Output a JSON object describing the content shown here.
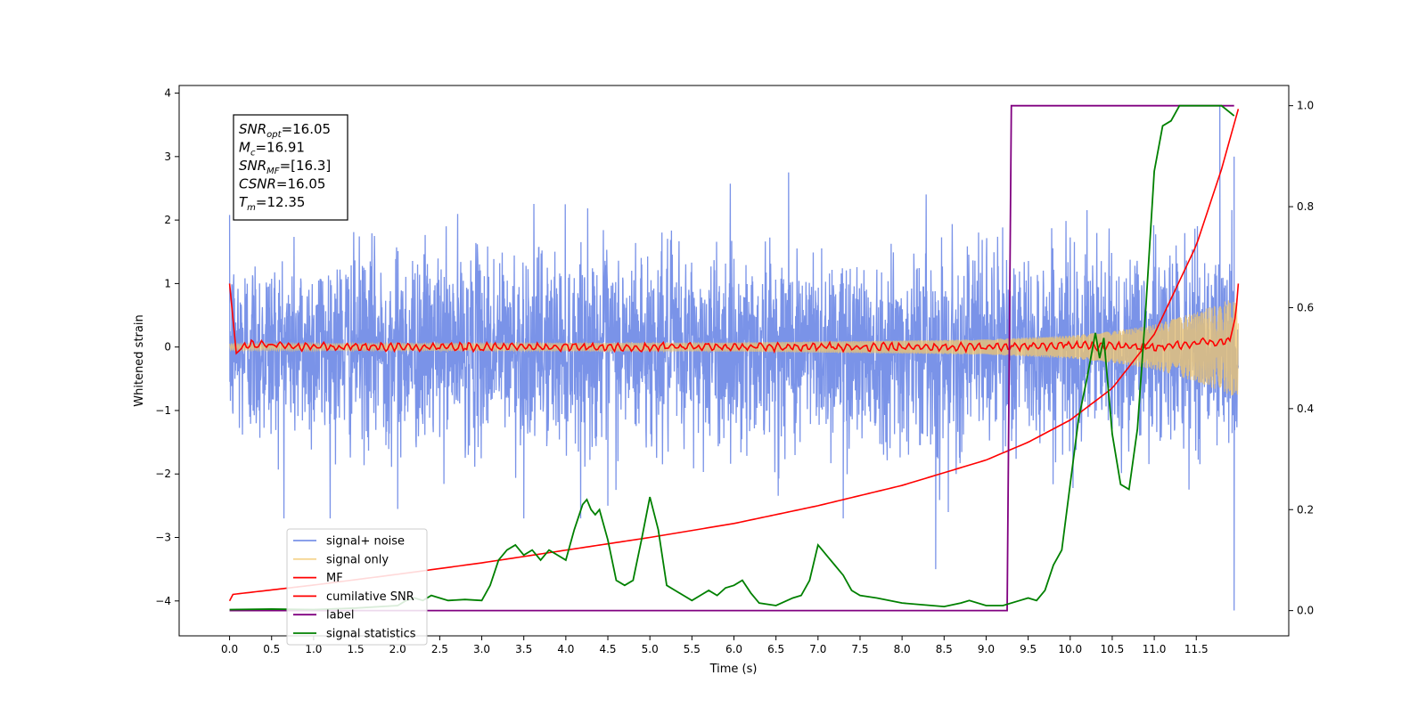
{
  "chart_data": {
    "type": "line",
    "xlabel": "Time (s)",
    "ylabel": "Whitened strain",
    "xlim": [
      -0.6,
      12.6
    ],
    "ylim": [
      -4.55,
      4.12
    ],
    "y2lim": [
      -0.05,
      1.04
    ],
    "x_ticks": [
      0.0,
      0.5,
      1.0,
      1.5,
      2.0,
      2.5,
      3.0,
      3.5,
      4.0,
      4.5,
      5.0,
      5.5,
      6.0,
      6.5,
      7.0,
      7.5,
      8.0,
      8.5,
      9.0,
      9.5,
      10.0,
      10.5,
      11.0,
      11.5
    ],
    "x_tick_labels": [
      "0.0",
      "0.5",
      "1.0",
      "1.5",
      "2.0",
      "2.5",
      "3.0",
      "3.5",
      "4.0",
      "4.5",
      "5.0",
      "5.5",
      "6.0",
      "6.5",
      "7.0",
      "7.5",
      "8.0",
      "8.5",
      "9.0",
      "9.5",
      "10.0",
      "10.5",
      "11.0",
      "11.5"
    ],
    "y_ticks": [
      -4,
      -3,
      -2,
      -1,
      0,
      1,
      2,
      3,
      4
    ],
    "y_tick_labels": [
      "−4",
      "−3",
      "−2",
      "−1",
      "0",
      "1",
      "2",
      "3",
      "4"
    ],
    "y2_ticks": [
      0.0,
      0.2,
      0.4,
      0.6,
      0.8,
      1.0
    ],
    "y2_tick_labels": [
      "0.0",
      "0.2",
      "0.4",
      "0.6",
      "0.8",
      "1.0"
    ],
    "grid": false,
    "legend_position": "lower-left",
    "series": [
      {
        "name": "signal+ noise",
        "color": "#6b87e6",
        "axis": "left",
        "kind": "noise",
        "x_range": [
          0.0,
          12.0
        ],
        "approx_std": 0.75,
        "approx_range": [
          -2.7,
          2.8
        ],
        "spikes": [
          {
            "x": 11.78,
            "y": 3.8
          },
          {
            "x": 11.95,
            "y": 3.0
          },
          {
            "x": 11.95,
            "y": -4.15
          },
          {
            "x": 8.4,
            "y": -3.5
          },
          {
            "x": 3.5,
            "y": -2.7
          },
          {
            "x": 2.0,
            "y": -2.55
          },
          {
            "x": 4.5,
            "y": -2.5
          },
          {
            "x": 6.65,
            "y": 2.75
          },
          {
            "x": 8.55,
            "y": -2.6
          },
          {
            "x": 7.3,
            "y": -2.7
          }
        ]
      },
      {
        "name": "signal only",
        "color": "#f2c76e",
        "axis": "left",
        "kind": "chirp",
        "x": [
          0.0,
          6.0,
          9.0,
          10.0,
          10.5,
          11.0,
          11.5,
          11.8,
          12.0
        ],
        "amplitude": [
          0.05,
          0.07,
          0.12,
          0.18,
          0.25,
          0.35,
          0.55,
          0.7,
          0.8
        ]
      },
      {
        "name": "MF",
        "color": "#ff0000",
        "axis": "left",
        "x": [
          0.0,
          0.08,
          0.2,
          1.0,
          2.0,
          5.0,
          9.0,
          10.0,
          11.0,
          11.9,
          11.97,
          12.0
        ],
        "y": [
          1.0,
          -0.1,
          0.05,
          0.0,
          0.0,
          0.0,
          0.0,
          0.03,
          0.0,
          0.1,
          0.5,
          1.0
        ]
      },
      {
        "name": "cumilative SNR",
        "color": "#ff0000",
        "axis": "left",
        "x": [
          0.0,
          0.02,
          1.0,
          2.0,
          3.0,
          4.0,
          5.0,
          6.0,
          7.0,
          8.0,
          9.0,
          9.5,
          10.0,
          10.5,
          11.0,
          11.5,
          11.8,
          12.0
        ],
        "y": [
          -4.0,
          -3.9,
          -3.75,
          -3.58,
          -3.4,
          -3.2,
          -3.0,
          -2.78,
          -2.5,
          -2.18,
          -1.78,
          -1.5,
          -1.15,
          -0.65,
          0.2,
          1.6,
          2.8,
          3.75
        ]
      },
      {
        "name": "label",
        "color": "#800080",
        "axis": "right",
        "x": [
          0.0,
          9.25,
          9.3,
          11.95
        ],
        "y": [
          0.0,
          0.0,
          1.0,
          1.0
        ]
      },
      {
        "name": "signal statistics",
        "color": "#008000",
        "axis": "right",
        "x": [
          0.0,
          0.5,
          1.0,
          1.5,
          2.0,
          2.1,
          2.2,
          2.3,
          2.4,
          2.5,
          2.6,
          2.8,
          3.0,
          3.1,
          3.2,
          3.3,
          3.4,
          3.5,
          3.6,
          3.7,
          3.8,
          3.9,
          4.0,
          4.1,
          4.2,
          4.25,
          4.3,
          4.35,
          4.4,
          4.5,
          4.6,
          4.7,
          4.8,
          4.9,
          5.0,
          5.1,
          5.2,
          5.3,
          5.4,
          5.5,
          5.6,
          5.7,
          5.8,
          5.9,
          6.0,
          6.1,
          6.2,
          6.3,
          6.5,
          6.7,
          6.8,
          6.9,
          7.0,
          7.05,
          7.1,
          7.2,
          7.3,
          7.4,
          7.5,
          7.7,
          8.0,
          8.5,
          8.7,
          8.8,
          9.0,
          9.2,
          9.4,
          9.5,
          9.6,
          9.7,
          9.8,
          9.9,
          10.0,
          10.1,
          10.2,
          10.3,
          10.35,
          10.4,
          10.5,
          10.6,
          10.7,
          10.8,
          10.9,
          11.0,
          11.1,
          11.2,
          11.3,
          11.5,
          11.8,
          11.95
        ],
        "y": [
          0.002,
          0.003,
          0.002,
          0.005,
          0.01,
          0.02,
          0.025,
          0.02,
          0.03,
          0.025,
          0.02,
          0.022,
          0.02,
          0.05,
          0.1,
          0.12,
          0.13,
          0.11,
          0.12,
          0.1,
          0.12,
          0.11,
          0.1,
          0.16,
          0.21,
          0.22,
          0.2,
          0.19,
          0.2,
          0.14,
          0.06,
          0.05,
          0.06,
          0.14,
          0.225,
          0.16,
          0.05,
          0.04,
          0.03,
          0.02,
          0.03,
          0.04,
          0.03,
          0.045,
          0.05,
          0.06,
          0.035,
          0.015,
          0.01,
          0.025,
          0.03,
          0.06,
          0.13,
          0.12,
          0.11,
          0.09,
          0.07,
          0.04,
          0.03,
          0.025,
          0.015,
          0.008,
          0.015,
          0.02,
          0.01,
          0.01,
          0.02,
          0.025,
          0.02,
          0.04,
          0.09,
          0.12,
          0.25,
          0.38,
          0.46,
          0.55,
          0.5,
          0.54,
          0.35,
          0.25,
          0.24,
          0.36,
          0.6,
          0.87,
          0.96,
          0.97,
          1.0,
          1.0,
          1.0,
          0.98
        ]
      }
    ]
  },
  "info_box": {
    "lines": [
      {
        "main": "SNR",
        "sub": "opt",
        "value": "=16.05"
      },
      {
        "main": "M",
        "sub": "c",
        "value": "=16.91"
      },
      {
        "main": "SNR",
        "sub": "MF",
        "value": "=[16.3]"
      },
      {
        "main": "CSNR",
        "sub": "",
        "value": "=16.05"
      },
      {
        "main": "T",
        "sub": "m",
        "value": "=12.35"
      }
    ]
  }
}
